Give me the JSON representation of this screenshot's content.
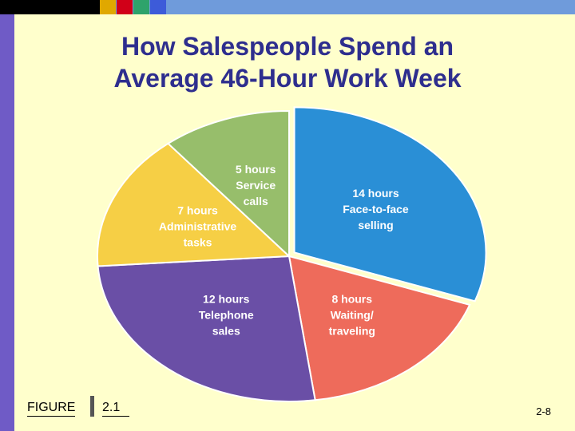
{
  "slide": {
    "title_line1": "How Salespeople Spend an",
    "title_line2": "Average 46-Hour Work Week",
    "figure_word": "FIGURE",
    "figure_number": "2.1",
    "page_number": "2-8"
  },
  "colors": {
    "background": "#FFFFCC",
    "title": "#2E2E8E",
    "left_band": "#6F5BC6",
    "top_bar": "#6F9BDB",
    "top_bar_dark": "#000000",
    "figure_separator": "#555555",
    "swatches": [
      "#E0A800",
      "#D10018",
      "#2EA36B",
      "#3D5BD9"
    ]
  },
  "chart_data": {
    "type": "pie",
    "title": "How Salespeople Spend an Average 46-Hour Work Week",
    "total_hours": 46,
    "slices": [
      {
        "value": 14,
        "lines": [
          "14 hours",
          "Face-to-face",
          "selling"
        ],
        "color": "#2A8FD6",
        "label_color": "#FFFFFF",
        "exploded": true
      },
      {
        "value": 8,
        "lines": [
          "8 hours",
          "Waiting/",
          "traveling"
        ],
        "color": "#EE6B5B",
        "label_color": "#FFFFFF",
        "exploded": false
      },
      {
        "value": 12,
        "lines": [
          "12 hours",
          "Telephone",
          "sales"
        ],
        "color": "#6A4FA6",
        "label_color": "#FFFFFF",
        "exploded": false
      },
      {
        "value": 7,
        "lines": [
          "7 hours",
          "Administrative",
          "tasks"
        ],
        "color": "#F6CF45",
        "label_color": "#FFFFFF",
        "exploded": false
      },
      {
        "value": 5,
        "lines": [
          "5 hours",
          "Service",
          "calls"
        ],
        "color": "#97BE6B",
        "label_color": "#FFFFFF",
        "exploded": false
      }
    ]
  }
}
